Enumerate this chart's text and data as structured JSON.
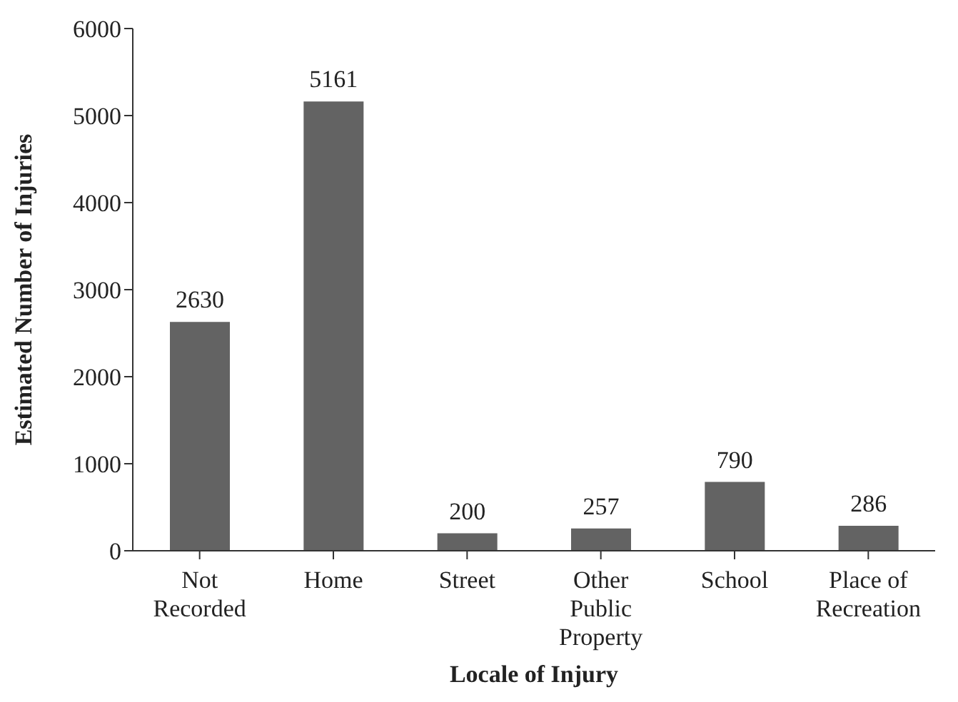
{
  "chart_data": {
    "type": "bar",
    "xlabel": "Locale of Injury",
    "ylabel": "Estimated Number of Injuries",
    "categories": [
      "Not Recorded",
      "Home",
      "Street",
      "Other Public Property",
      "School",
      "Place of Recreation"
    ],
    "values": [
      2630,
      5161,
      200,
      257,
      790,
      286
    ],
    "color": "#636363",
    "ylim": [
      0,
      6000
    ],
    "yticks": [
      0,
      1000,
      2000,
      3000,
      4000,
      5000,
      6000
    ],
    "grid": false,
    "data_labels": true
  }
}
